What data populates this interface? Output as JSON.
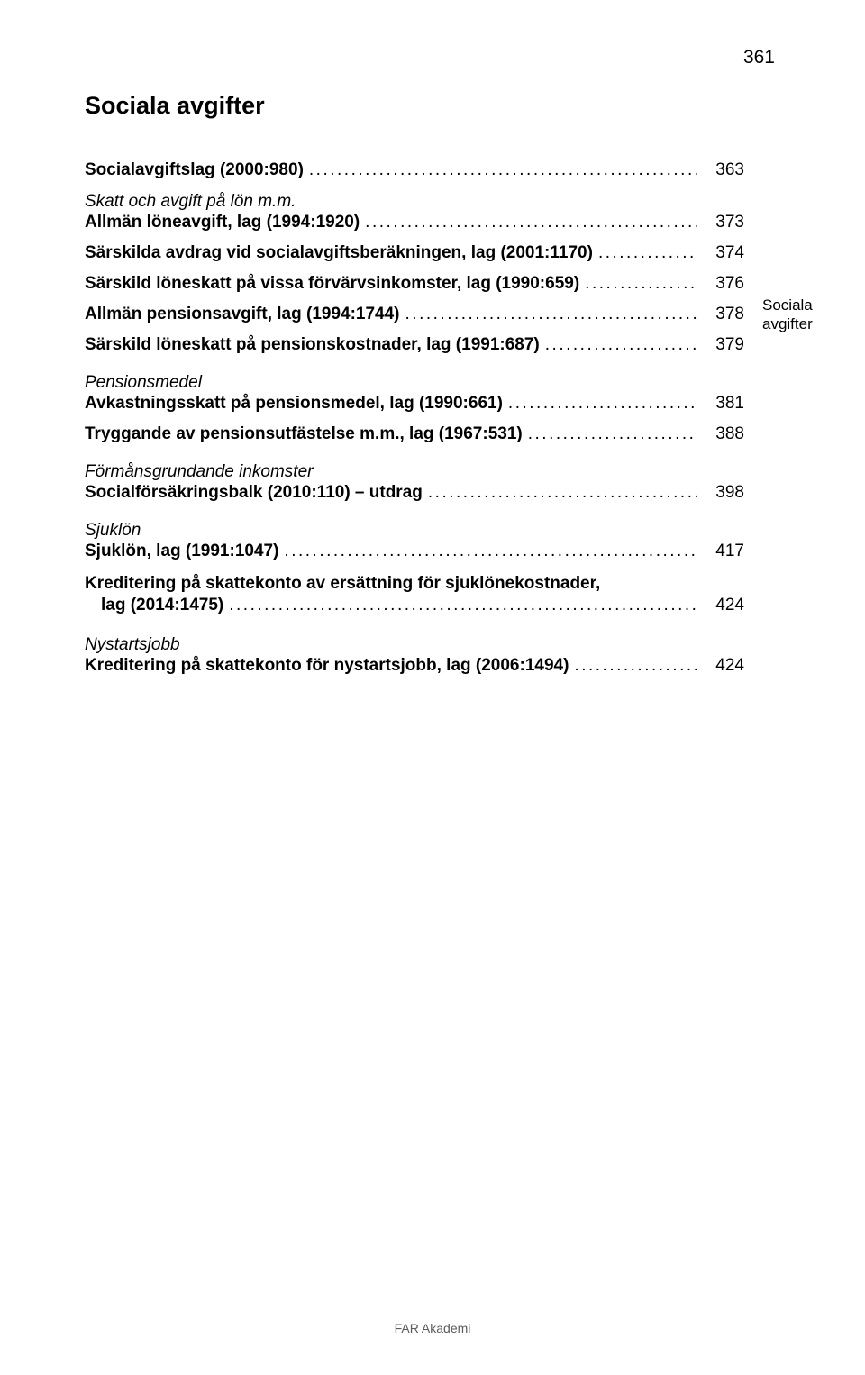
{
  "page_number": "361",
  "main_title": "Sociala avgifter",
  "margin_note_line1": "Sociala",
  "margin_note_line2": "avgifter",
  "footer_text": "FAR Akademi",
  "colors": {
    "background": "#ffffff",
    "text": "#000000",
    "footer_text": "#5b5b5b"
  },
  "typography": {
    "body_fontsize_pt": 14,
    "title_fontsize_pt": 20,
    "footer_fontsize_pt": 10,
    "font_family": "Arial"
  },
  "toc": [
    {
      "kind": "line",
      "label": "Socialavgiftslag (2000:980)",
      "bold": true,
      "page": "363"
    },
    {
      "kind": "heading",
      "label": "Skatt och avgift på lön m.m.",
      "first": true
    },
    {
      "kind": "line",
      "label": "Allmän löneavgift, lag (1994:1920)",
      "bold": true,
      "page": "373"
    },
    {
      "kind": "line",
      "label": "Särskilda avdrag vid socialavgiftsberäkningen, lag (2001:1170)",
      "bold": true,
      "page": "374"
    },
    {
      "kind": "line",
      "label": "Särskild löneskatt på vissa förvärvsinkomster, lag (1990:659)",
      "bold": true,
      "page": "376"
    },
    {
      "kind": "line",
      "label": "Allmän pensionsavgift, lag (1994:1744)",
      "bold": true,
      "page": "378"
    },
    {
      "kind": "line",
      "label": "Särskild löneskatt på pensionskostnader, lag (1991:687)",
      "bold": true,
      "page": "379"
    },
    {
      "kind": "heading",
      "label": "Pensionsmedel"
    },
    {
      "kind": "line",
      "label": "Avkastningsskatt på pensionsmedel, lag (1990:661)",
      "bold": true,
      "page": "381"
    },
    {
      "kind": "line",
      "label": "Tryggande av pensionsutfästelse m.m., lag (1967:531)",
      "bold": true,
      "page": "388"
    },
    {
      "kind": "heading",
      "label": "Förmånsgrundande inkomster"
    },
    {
      "kind": "line",
      "label": "Socialförsäkringsbalk (2010:110) – utdrag",
      "bold": true,
      "page": "398"
    },
    {
      "kind": "heading",
      "label": "Sjuklön"
    },
    {
      "kind": "line",
      "label": "Sjuklön, lag (1991:1047)",
      "bold": true,
      "page": "417"
    },
    {
      "kind": "multiline",
      "line1": "Kreditering på skattekonto av ersättning för sjuklönekostnader,",
      "line2": "lag (2014:1475)",
      "bold": true,
      "indent": true,
      "page": "424"
    },
    {
      "kind": "heading",
      "label": "Nystartsjobb"
    },
    {
      "kind": "line",
      "label": "Kreditering på skattekonto för nystartsjobb, lag (2006:1494)",
      "bold": true,
      "page": "424"
    }
  ]
}
